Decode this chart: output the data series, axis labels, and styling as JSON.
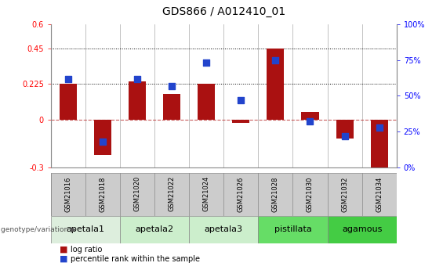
{
  "title": "GDS866 / A012410_01",
  "samples": [
    "GSM21016",
    "GSM21018",
    "GSM21020",
    "GSM21022",
    "GSM21024",
    "GSM21026",
    "GSM21028",
    "GSM21030",
    "GSM21032",
    "GSM21034"
  ],
  "log_ratio": [
    0.225,
    -0.22,
    0.24,
    0.16,
    0.225,
    -0.02,
    0.45,
    0.05,
    -0.12,
    -0.35
  ],
  "percentile_rank": [
    62,
    18,
    62,
    57,
    73,
    47,
    75,
    32,
    22,
    28
  ],
  "ylim_left": [
    -0.3,
    0.6
  ],
  "ylim_right": [
    0,
    100
  ],
  "yticks_left": [
    -0.3,
    0.0,
    0.225,
    0.45,
    0.6
  ],
  "ytick_labels_left": [
    "-0.3",
    "0",
    "0.225",
    "0.45",
    "0.6"
  ],
  "yticks_right": [
    0,
    25,
    50,
    75,
    100
  ],
  "ytick_labels_right": [
    "0%",
    "25%",
    "50%",
    "75%",
    "100%"
  ],
  "hlines_dotted": [
    0.225,
    0.45
  ],
  "zero_line_style": "dashed",
  "bar_color": "#AA1111",
  "dot_color": "#2244CC",
  "zero_line_color": "#BB3333",
  "groups": [
    {
      "label": "apetala1",
      "start": 0,
      "end": 2,
      "color": "#DDEEDD"
    },
    {
      "label": "apetala2",
      "start": 2,
      "end": 4,
      "color": "#CCEECC"
    },
    {
      "label": "apetala3",
      "start": 4,
      "end": 6,
      "color": "#CCEECC"
    },
    {
      "label": "pistillata",
      "start": 6,
      "end": 8,
      "color": "#66DD66"
    },
    {
      "label": "agamous",
      "start": 8,
      "end": 10,
      "color": "#44CC44"
    }
  ],
  "sample_box_color": "#CCCCCC",
  "genotype_label": "genotype/variation",
  "legend_bar": "log ratio",
  "legend_dot": "percentile rank within the sample",
  "title_fontsize": 10,
  "tick_fontsize": 7,
  "sample_fontsize": 6,
  "group_fontsize": 8,
  "legend_fontsize": 7,
  "bar_width": 0.5,
  "dot_size": 30
}
